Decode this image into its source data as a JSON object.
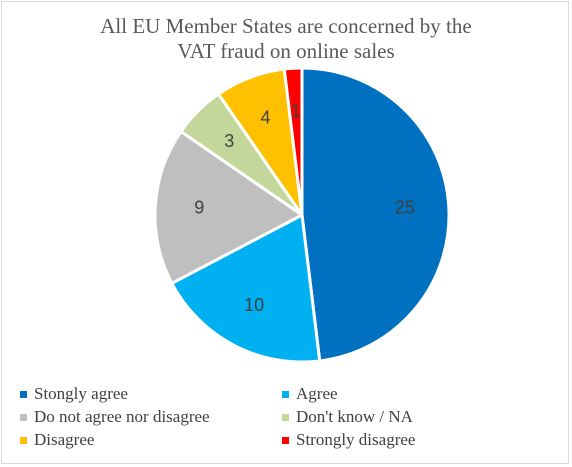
{
  "chart_data": {
    "type": "pie",
    "title_lines": [
      "All EU Member States are concerned by the",
      "VAT fraud on online sales"
    ],
    "slices": [
      {
        "label": "Stongly agree",
        "value": 25,
        "color": "#0070c0"
      },
      {
        "label": "Agree",
        "value": 10,
        "color": "#00b0f0"
      },
      {
        "label": "Do not agree nor disagree",
        "value": 9,
        "color": "#bfbfbf"
      },
      {
        "label": "Don't know / NA",
        "value": 3,
        "color": "#c4d79b"
      },
      {
        "label": "Disagree",
        "value": 4,
        "color": "#ffc000"
      },
      {
        "label": "Strongly disagree",
        "value": 1,
        "color": "#ff0000"
      }
    ],
    "start": "12 o'clock",
    "direction": "clockwise",
    "legend_position": "bottom",
    "data_labels": "value inside slice"
  }
}
